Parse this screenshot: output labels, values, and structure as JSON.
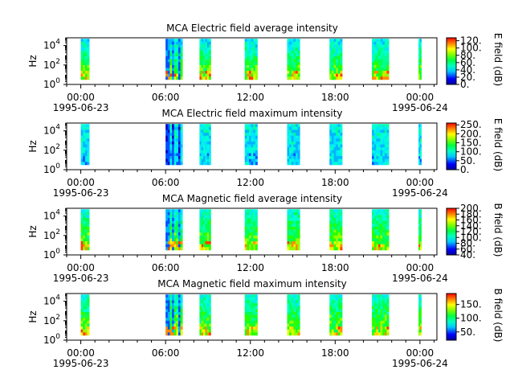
{
  "chart_data": [
    {
      "type": "heatmap",
      "title": "MCA  Electric field average intensity",
      "ylabel": "Hz",
      "y_scale": "log",
      "y_ticks": [
        {
          "base": "10",
          "exp": "0"
        },
        {
          "base": "10",
          "exp": "2"
        },
        {
          "base": "10",
          "exp": "4"
        }
      ],
      "x_ticks": [
        "00:00",
        "06:00",
        "12:00",
        "18:00",
        "00:00"
      ],
      "x_dates": [
        "1995-06-23",
        "1995-06-24"
      ],
      "colorbar": {
        "label": "E field (dB)",
        "ticks": [
          "0.",
          "20.",
          "40.",
          "60.",
          "80.",
          "100.",
          "120."
        ],
        "range": [
          0,
          128
        ]
      },
      "bursts_hours": [
        [
          0.0,
          0.6
        ],
        [
          6.0,
          7.2
        ],
        [
          8.4,
          9.2
        ],
        [
          11.6,
          12.5
        ],
        [
          14.6,
          15.5
        ],
        [
          17.6,
          18.5
        ],
        [
          20.6,
          21.8
        ],
        [
          23.9,
          24.1
        ]
      ]
    },
    {
      "type": "heatmap",
      "title": "MCA  Electric field maximum intensity",
      "ylabel": "Hz",
      "y_scale": "log",
      "y_ticks": [
        {
          "base": "10",
          "exp": "0"
        },
        {
          "base": "10",
          "exp": "2"
        },
        {
          "base": "10",
          "exp": "4"
        }
      ],
      "x_ticks": [
        "00:00",
        "06:00",
        "12:00",
        "18:00",
        "00:00"
      ],
      "x_dates": [
        "1995-06-23",
        "1995-06-24"
      ],
      "colorbar": {
        "label": "E field (dB)",
        "ticks": [
          "0.",
          "50.",
          "100.",
          "150.",
          "200.",
          "250."
        ],
        "range": [
          0,
          260
        ]
      },
      "bursts_hours": [
        [
          0.0,
          0.6
        ],
        [
          6.0,
          7.2
        ],
        [
          8.4,
          9.2
        ],
        [
          11.6,
          12.5
        ],
        [
          14.6,
          15.5
        ],
        [
          17.6,
          18.5
        ],
        [
          20.6,
          21.8
        ],
        [
          23.9,
          24.1
        ]
      ]
    },
    {
      "type": "heatmap",
      "title": "MCA  Magnetic field average intensity",
      "ylabel": "Hz",
      "y_scale": "log",
      "y_ticks": [
        {
          "base": "10",
          "exp": "0"
        },
        {
          "base": "10",
          "exp": "2"
        },
        {
          "base": "10",
          "exp": "4"
        }
      ],
      "x_ticks": [
        "00:00",
        "06:00",
        "12:00",
        "18:00",
        "00:00"
      ],
      "x_dates": [
        "1995-06-23",
        "1995-06-24"
      ],
      "colorbar": {
        "label": "B field (dB)",
        "ticks": [
          "40.",
          "60.",
          "80.",
          "100.",
          "120.",
          "140.",
          "160.",
          "180.",
          "200."
        ],
        "range": [
          40,
          200
        ]
      },
      "bursts_hours": [
        [
          0.0,
          0.6
        ],
        [
          6.0,
          7.2
        ],
        [
          8.4,
          9.2
        ],
        [
          11.6,
          12.5
        ],
        [
          14.6,
          15.5
        ],
        [
          17.6,
          18.5
        ],
        [
          20.6,
          21.8
        ],
        [
          23.9,
          24.1
        ]
      ]
    },
    {
      "type": "heatmap",
      "title": "MCA  Magnetic field maximum intensity",
      "ylabel": "Hz",
      "y_scale": "log",
      "y_ticks": [
        {
          "base": "10",
          "exp": "0"
        },
        {
          "base": "10",
          "exp": "2"
        },
        {
          "base": "10",
          "exp": "4"
        }
      ],
      "x_ticks": [
        "00:00",
        "06:00",
        "12:00",
        "18:00",
        "00:00"
      ],
      "x_dates": [
        "1995-06-23",
        "1995-06-24"
      ],
      "colorbar": {
        "label": "B field (dB)",
        "ticks": [
          "50.",
          "100.",
          "150."
        ],
        "range": [
          20,
          190
        ]
      },
      "bursts_hours": [
        [
          0.0,
          0.6
        ],
        [
          6.0,
          7.2
        ],
        [
          8.4,
          9.2
        ],
        [
          11.6,
          12.5
        ],
        [
          14.6,
          15.5
        ],
        [
          17.6,
          18.5
        ],
        [
          20.6,
          21.8
        ],
        [
          23.9,
          24.1
        ]
      ]
    }
  ]
}
